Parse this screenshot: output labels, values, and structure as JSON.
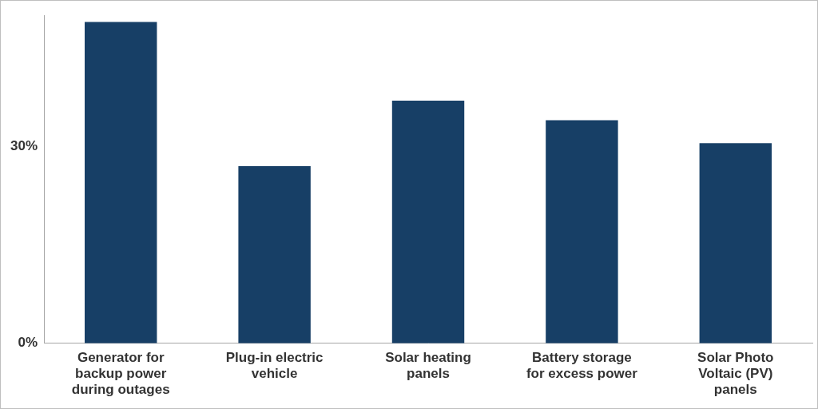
{
  "chart_data": {
    "type": "bar",
    "categories": [
      "Generator for backup power during outages",
      "Plug-in electric vehicle",
      "Solar heating panels",
      "Battery storage for excess power",
      "Solar Photo Voltaic (PV) panels"
    ],
    "values": [
      49,
      27,
      37,
      34,
      30.5
    ],
    "color": "#173f66",
    "ylim": [
      0,
      50
    ],
    "yticks": [
      {
        "value": 0,
        "label": "0%"
      },
      {
        "value": 30,
        "label": "30%"
      }
    ],
    "grid": false
  }
}
